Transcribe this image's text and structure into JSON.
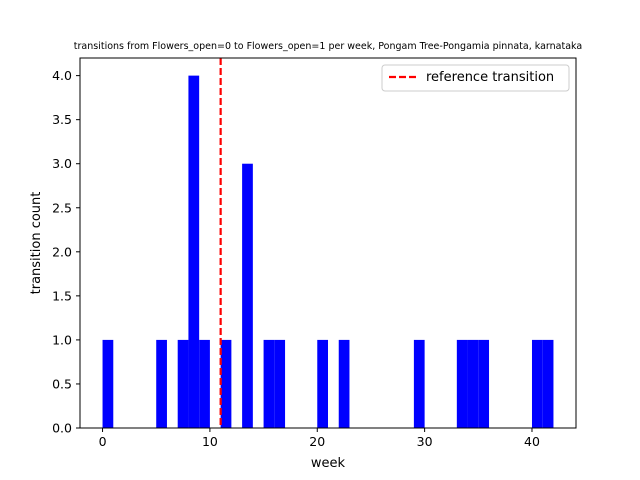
{
  "chart_data": {
    "type": "bar",
    "title": "transitions from Flowers_open=0 to Flowers_open=1 per week, Pongam Tree-Pongamia pinnata, karnataka",
    "xlabel": "week",
    "ylabel": "transition count",
    "xlim": [
      -2.1,
      44.1
    ],
    "ylim": [
      0,
      4.2
    ],
    "x_ticks": [
      0,
      10,
      20,
      30,
      40
    ],
    "y_ticks": [
      0.0,
      0.5,
      1.0,
      1.5,
      2.0,
      2.5,
      3.0,
      3.5,
      4.0
    ],
    "bin_width": 1,
    "bars": [
      {
        "start": 0,
        "count": 1
      },
      {
        "start": 5,
        "count": 1
      },
      {
        "start": 7,
        "count": 1
      },
      {
        "start": 8,
        "count": 4
      },
      {
        "start": 9,
        "count": 1
      },
      {
        "start": 11,
        "count": 1
      },
      {
        "start": 13,
        "count": 3
      },
      {
        "start": 15,
        "count": 1
      },
      {
        "start": 16,
        "count": 1
      },
      {
        "start": 20,
        "count": 1
      },
      {
        "start": 22,
        "count": 1
      },
      {
        "start": 29,
        "count": 1
      },
      {
        "start": 33,
        "count": 1
      },
      {
        "start": 34,
        "count": 1
      },
      {
        "start": 35,
        "count": 1
      },
      {
        "start": 40,
        "count": 1
      },
      {
        "start": 41,
        "count": 1
      }
    ],
    "bar_color": "#0000ff",
    "reference_line": {
      "x": 11,
      "label": "reference transition",
      "color": "#ff0000"
    },
    "legend_position": "top-right",
    "grid": false
  }
}
